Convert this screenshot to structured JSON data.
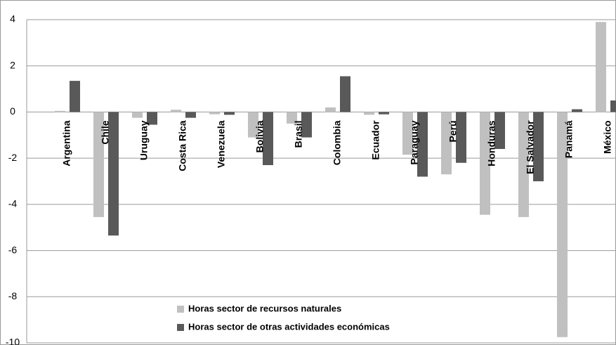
{
  "chart_data": {
    "type": "bar",
    "categories": [
      "Argentina",
      "Chile",
      "Uruguay",
      "Costa Rica",
      "Venezuela",
      "Bolivia",
      "Brasil",
      "Colombia",
      "Ecuador",
      "Paraguay",
      "Perú",
      "Honduras",
      "El Salvador",
      "Panamá",
      "México"
    ],
    "series": [
      {
        "name": "Horas sector de recursos naturales",
        "color": "#c0c0c0",
        "values": [
          0.05,
          -4.55,
          -0.25,
          0.1,
          -0.1,
          -1.1,
          -0.5,
          0.2,
          -0.12,
          -1.85,
          -2.7,
          -4.45,
          -4.55,
          -9.75,
          3.9
        ]
      },
      {
        "name": "Horas sector de otras actividades  económicas",
        "color": "#595959",
        "values": [
          1.35,
          -5.35,
          -0.55,
          -0.25,
          -0.12,
          -2.3,
          -1.1,
          1.55,
          -0.1,
          -2.8,
          -2.2,
          -1.6,
          -3.0,
          0.12,
          0.5
        ]
      }
    ],
    "ylim": [
      -10,
      4
    ],
    "yticks": [
      -10,
      -8,
      -6,
      -4,
      -2,
      0,
      2,
      4
    ],
    "grid": true
  }
}
